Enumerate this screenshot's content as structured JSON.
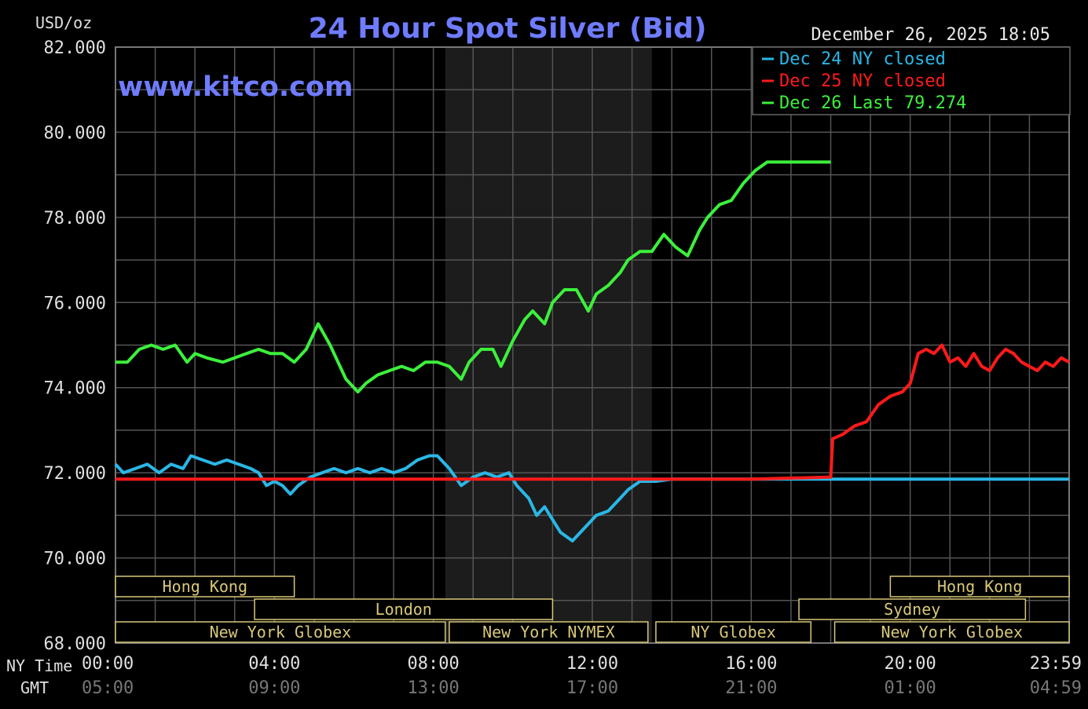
{
  "chart_data": {
    "type": "line",
    "title": "24 Hour Spot Silver (Bid)",
    "watermark": "www.kitco.com",
    "timestamp": "December 26, 2025 18:05",
    "unit_label": "USD/oz",
    "ylim": [
      68,
      82
    ],
    "y_ticks": [
      {
        "value": 68,
        "label": "68.000"
      },
      {
        "value": 70,
        "label": "70.000"
      },
      {
        "value": 72,
        "label": "72.000"
      },
      {
        "value": 74,
        "label": "74.000"
      },
      {
        "value": 76,
        "label": "76.000"
      },
      {
        "value": 78,
        "label": "78.000"
      },
      {
        "value": 80,
        "label": "80.000"
      },
      {
        "value": 82,
        "label": "82.000"
      }
    ],
    "xlim": [
      0,
      24
    ],
    "x_row_labels": {
      "ny": "NY Time",
      "gmt": "GMT"
    },
    "x_ticks": [
      {
        "hour": 0,
        "ny": "00:00",
        "gmt": "05:00"
      },
      {
        "hour": 4,
        "ny": "04:00",
        "gmt": "09:00"
      },
      {
        "hour": 8,
        "ny": "08:00",
        "gmt": "13:00"
      },
      {
        "hour": 12,
        "ny": "12:00",
        "gmt": "17:00"
      },
      {
        "hour": 16,
        "ny": "16:00",
        "gmt": "21:00"
      },
      {
        "hour": 20,
        "ny": "20:00",
        "gmt": "01:00"
      },
      {
        "hour": 24,
        "ny": "23:59",
        "gmt": "04:59"
      }
    ],
    "grid": true,
    "shaded_session": {
      "start": 8.3,
      "end": 13.5
    },
    "legend_placement": "top-right",
    "colors": {
      "background": "#000000",
      "grid": "#555555",
      "shade": "#1c1c1c",
      "axis_text": "#e0e0e0",
      "gmt_text": "#777777",
      "title": "#6f7cff",
      "session_box": "#d8c878"
    },
    "series": [
      {
        "name": "Dec 24 NY closed",
        "color": "#2ab7e6",
        "x": [
          0,
          0.2,
          0.5,
          0.8,
          1.1,
          1.4,
          1.7,
          1.9,
          2.2,
          2.5,
          2.8,
          3.1,
          3.4,
          3.6,
          3.8,
          4.0,
          4.2,
          4.4,
          4.6,
          4.9,
          5.2,
          5.5,
          5.8,
          6.1,
          6.4,
          6.7,
          7.0,
          7.3,
          7.6,
          7.9,
          8.1,
          8.4,
          8.7,
          9.0,
          9.3,
          9.6,
          9.9,
          10.1,
          10.4,
          10.6,
          10.8,
          11.0,
          11.2,
          11.5,
          11.8,
          12.1,
          12.4,
          12.7,
          12.9,
          13.2,
          13.6,
          14,
          16,
          18,
          18.1,
          20,
          22,
          24
        ],
        "values": [
          72.2,
          72.0,
          72.1,
          72.2,
          72.0,
          72.2,
          72.1,
          72.4,
          72.3,
          72.2,
          72.3,
          72.2,
          72.1,
          72.0,
          71.7,
          71.8,
          71.7,
          71.5,
          71.7,
          71.9,
          72.0,
          72.1,
          72.0,
          72.1,
          72.0,
          72.1,
          72.0,
          72.1,
          72.3,
          72.4,
          72.4,
          72.1,
          71.7,
          71.9,
          72.0,
          71.9,
          72.0,
          71.7,
          71.4,
          71.0,
          71.2,
          70.9,
          70.6,
          70.4,
          70.7,
          71.0,
          71.1,
          71.4,
          71.6,
          71.8,
          71.8,
          71.85,
          71.85,
          71.85,
          71.85,
          71.85,
          71.85,
          71.85
        ]
      },
      {
        "name": "Dec 25 NY closed",
        "color": "#ff1a1a",
        "x": [
          0,
          4,
          8,
          12,
          16,
          18.0,
          18.05,
          18.3,
          18.6,
          18.9,
          19.2,
          19.5,
          19.8,
          20.0,
          20.2,
          20.4,
          20.6,
          20.8,
          21.0,
          21.2,
          21.4,
          21.6,
          21.8,
          22.0,
          22.2,
          22.4,
          22.6,
          22.8,
          23.0,
          23.2,
          23.4,
          23.6,
          23.8,
          24
        ],
        "values": [
          71.85,
          71.85,
          71.85,
          71.85,
          71.85,
          71.9,
          72.8,
          72.9,
          73.1,
          73.2,
          73.6,
          73.8,
          73.9,
          74.1,
          74.8,
          74.9,
          74.8,
          75.0,
          74.6,
          74.7,
          74.5,
          74.8,
          74.5,
          74.4,
          74.7,
          74.9,
          74.8,
          74.6,
          74.5,
          74.4,
          74.6,
          74.5,
          74.7,
          74.6
        ]
      },
      {
        "name": "Dec 26 Last 79.274",
        "color": "#3cf03c",
        "x": [
          0,
          0.3,
          0.6,
          0.9,
          1.2,
          1.5,
          1.8,
          2.0,
          2.3,
          2.7,
          3.0,
          3.3,
          3.6,
          3.9,
          4.2,
          4.5,
          4.8,
          5.1,
          5.4,
          5.6,
          5.8,
          6.1,
          6.3,
          6.6,
          6.9,
          7.2,
          7.5,
          7.8,
          8.1,
          8.4,
          8.7,
          8.9,
          9.2,
          9.5,
          9.7,
          10.0,
          10.3,
          10.5,
          10.8,
          11.0,
          11.3,
          11.6,
          11.9,
          12.1,
          12.4,
          12.7,
          12.9,
          13.2,
          13.5,
          13.8,
          14.1,
          14.4,
          14.7,
          14.9,
          15.2,
          15.5,
          15.8,
          16.1,
          16.4,
          16.7,
          17.0,
          17.2,
          17.5,
          17.8,
          18.0
        ],
        "values": [
          74.6,
          74.6,
          74.9,
          75.0,
          74.9,
          75.0,
          74.6,
          74.8,
          74.7,
          74.6,
          74.7,
          74.8,
          74.9,
          74.8,
          74.8,
          74.6,
          74.9,
          75.5,
          75.0,
          74.6,
          74.2,
          73.9,
          74.1,
          74.3,
          74.4,
          74.5,
          74.4,
          74.6,
          74.6,
          74.5,
          74.2,
          74.6,
          74.9,
          74.9,
          74.5,
          75.1,
          75.6,
          75.8,
          75.5,
          76.0,
          76.3,
          76.3,
          75.8,
          76.2,
          76.4,
          76.7,
          77.0,
          77.2,
          77.2,
          77.6,
          77.3,
          77.1,
          77.7,
          78.0,
          78.3,
          78.4,
          78.8,
          79.1,
          79.3,
          79.3,
          79.3,
          79.3,
          79.3,
          79.3,
          79.3
        ]
      }
    ],
    "sessions": [
      {
        "label": "Hong Kong",
        "start": 0,
        "end": 4.5,
        "row": 0
      },
      {
        "label": "London",
        "start": 3.5,
        "end": 11.0,
        "row": 1
      },
      {
        "label": "New York Globex",
        "start": 0,
        "end": 8.3,
        "row": 2
      },
      {
        "label": "New York NYMEX",
        "start": 8.4,
        "end": 13.4,
        "row": 2
      },
      {
        "label": "NY Globex",
        "start": 13.6,
        "end": 17.5,
        "row": 2
      },
      {
        "label": "Hong Kong",
        "start": 19.5,
        "end": 24,
        "row": 0
      },
      {
        "label": "Sydney",
        "start": 17.2,
        "end": 22.9,
        "row": 1
      },
      {
        "label": "New York Globex",
        "start": 18.1,
        "end": 24,
        "row": 2
      }
    ]
  }
}
